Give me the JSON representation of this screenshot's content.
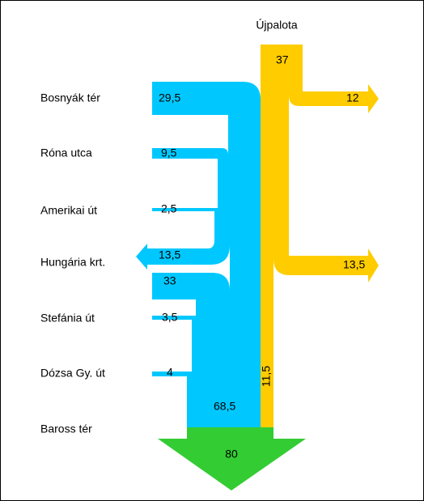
{
  "title": "Újpalota",
  "nodes": [
    "Bosnyák tér",
    "Róna utca",
    "Amerikai út",
    "Hungária krt.",
    "Stefánia út",
    "Dózsa Gy. út",
    "Baross tér"
  ],
  "flows": {
    "source": "37",
    "out_right_1": "12",
    "out_right_2": "13,5",
    "yellow_down": "11,5",
    "bosnyak": "29,5",
    "rona": "9,5",
    "amerikai": "2,5",
    "hungaria_out": "13,5",
    "hungaria_in": "33",
    "stefania": "3,5",
    "dozsa": "4",
    "blue_total": "68,5",
    "total": "80"
  }
}
